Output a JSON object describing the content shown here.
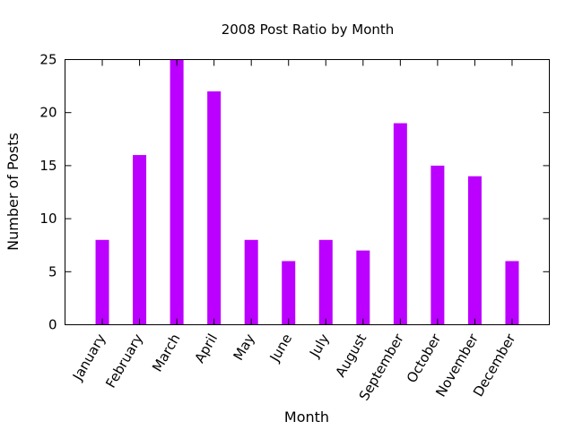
{
  "chart_data": {
    "type": "bar",
    "title": "2008 Post Ratio by Month",
    "xlabel": "Month",
    "ylabel": "Number of Posts",
    "categories": [
      "January",
      "February",
      "March",
      "April",
      "May",
      "June",
      "July",
      "August",
      "September",
      "October",
      "November",
      "December"
    ],
    "values": [
      8,
      16,
      25,
      22,
      8,
      6,
      8,
      7,
      19,
      15,
      14,
      6
    ],
    "ylim": [
      0,
      25
    ],
    "yticks": [
      0,
      5,
      10,
      15,
      20,
      25
    ],
    "grid": false,
    "legend": "none",
    "bar_color": "#bb00ff"
  }
}
